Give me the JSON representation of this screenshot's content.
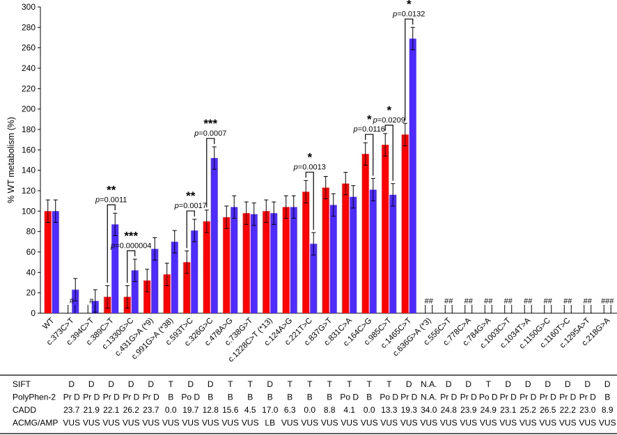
{
  "chart_data": {
    "type": "bar",
    "ylabel": "% WT metabolism (%)",
    "ylim": [
      0,
      300
    ],
    "yticks": [
      0,
      20,
      40,
      60,
      80,
      100,
      120,
      140,
      160,
      180,
      200,
      220,
      240,
      260,
      280,
      300
    ],
    "colors": {
      "red": "#ff0000",
      "blue": "#4e2cff"
    },
    "categories": [
      "WT",
      "c.373C>T",
      "c.394C>T",
      "c.389C>T",
      "c.1330G>C",
      "c.431G>A (*9)",
      "c.991G>A (*38)",
      "c.593T>C",
      "c.326G>C",
      "c.478A>G",
      "c.738G>T",
      "c.1228C>T (*13)",
      "c.124A>G",
      "c.221T>C",
      "c.837G>T",
      "c.831C>A",
      "c.164C>G",
      "c.985C>T",
      "c.1465C>T",
      "c.636G>A (*3)",
      "c.556C>T",
      "c.778C>A",
      "c.784G>A",
      "c.1003C>T",
      "c.1034T>A",
      "c.1150G>C",
      "c.1160T>C",
      "c.1295A>T",
      "c.218G>A"
    ],
    "series": [
      {
        "name": "red",
        "values": [
          100,
          null,
          null,
          16,
          16,
          32,
          38,
          50,
          90,
          94,
          98,
          100,
          104,
          119,
          123,
          127,
          156,
          165,
          175,
          null,
          null,
          null,
          null,
          null,
          null,
          null,
          null,
          null,
          null
        ],
        "errors": [
          11,
          null,
          null,
          11,
          11,
          11,
          11,
          11,
          11,
          11,
          11,
          11,
          11,
          11,
          11,
          11,
          11,
          11,
          11,
          null,
          null,
          null,
          null,
          null,
          null,
          null,
          null,
          null,
          null
        ]
      },
      {
        "name": "blue",
        "values": [
          100,
          23,
          12,
          87,
          42,
          63,
          70,
          81,
          152,
          104,
          97,
          98,
          104,
          68,
          106,
          114,
          121,
          116,
          269,
          null,
          null,
          null,
          null,
          null,
          null,
          null,
          null,
          null,
          null
        ],
        "errors": [
          11,
          11,
          11,
          11,
          11,
          11,
          11,
          11,
          11,
          11,
          11,
          11,
          11,
          11,
          11,
          11,
          11,
          11,
          11,
          null,
          null,
          null,
          null,
          null,
          null,
          null,
          null,
          null,
          null
        ]
      }
    ],
    "hash_marks": [
      {
        "index": 1,
        "text": "#"
      },
      {
        "index": 2,
        "text": "#"
      },
      {
        "index": 19,
        "text": "##"
      },
      {
        "index": 20,
        "text": "##"
      },
      {
        "index": 21,
        "text": "##"
      },
      {
        "index": 22,
        "text": "##"
      },
      {
        "index": 23,
        "text": "##"
      },
      {
        "index": 24,
        "text": "##"
      },
      {
        "index": 25,
        "text": "##"
      },
      {
        "index": 26,
        "text": "##"
      },
      {
        "index": 27,
        "text": "##"
      },
      {
        "index": 28,
        "text": "###"
      }
    ],
    "significance": [
      {
        "index": 3,
        "stars": "**",
        "p": "=0.0011"
      },
      {
        "index": 4,
        "stars": "***",
        "p": "=0.000004"
      },
      {
        "index": 7,
        "stars": "**",
        "p": "=0.0017"
      },
      {
        "index": 8,
        "stars": "***",
        "p": "=0.0007"
      },
      {
        "index": 13,
        "stars": "*",
        "p": "=0.0013"
      },
      {
        "index": 16,
        "stars": "*",
        "p": "=0.0116"
      },
      {
        "index": 17,
        "stars": "*",
        "p": "=0.0209"
      },
      {
        "index": 18,
        "stars": "*",
        "p": "=0.0132"
      }
    ],
    "p_symbol": "p"
  },
  "table": {
    "rows": [
      {
        "label": "SIFT",
        "values": [
          "D",
          "D",
          "D",
          "D",
          "D",
          "T",
          "D",
          "D",
          "T",
          "T",
          "D",
          "T",
          "T",
          "T",
          "T",
          "T",
          "T",
          "D",
          "N.A.",
          "D",
          "D",
          "T",
          "D",
          "D",
          "D",
          "D",
          "D",
          "D"
        ]
      },
      {
        "label": "PolyPhen-2",
        "values": [
          "Pr D",
          "Pr D",
          "Pr D",
          "Pr D",
          "Pr D",
          "B",
          "Po D",
          "B",
          "B",
          "B",
          "B",
          "B",
          "B",
          "B",
          "Po D",
          "B",
          "Po D",
          "Pr D",
          "N.A.",
          "Pr D",
          "Pr D",
          "Po D",
          "Pr D",
          "Pr D",
          "Pr D",
          "Pr D",
          "Pr D",
          "B"
        ]
      },
      {
        "label": "CADD",
        "values": [
          "23.7",
          "21.9",
          "22.1",
          "26.2",
          "23.7",
          "0.0",
          "19.7",
          "12.8",
          "15.6",
          "4.5",
          "17.0",
          "6.3",
          "0.0",
          "8.8",
          "4.1",
          "0.0",
          "13.3",
          "19.3",
          "34.0",
          "24.8",
          "23.9",
          "24.9",
          "23.1",
          "25.2",
          "26.5",
          "22.2",
          "23.0",
          "8.9"
        ]
      },
      {
        "label": "ACMG/AMP",
        "values": [
          "VUS",
          "VUS",
          "VUS",
          "VUS",
          "VUS",
          "VUS",
          "VUS",
          "VUS",
          "VUS",
          "VUS",
          "LB",
          "VUS",
          "VUS",
          "VUS",
          "VUS",
          "VUS",
          "VUS",
          "VUS",
          "VUS",
          "VUS",
          "VUS",
          "VUS",
          "VUS",
          "VUS",
          "VUS",
          "VUS",
          "VUS",
          "VUS"
        ]
      }
    ]
  }
}
